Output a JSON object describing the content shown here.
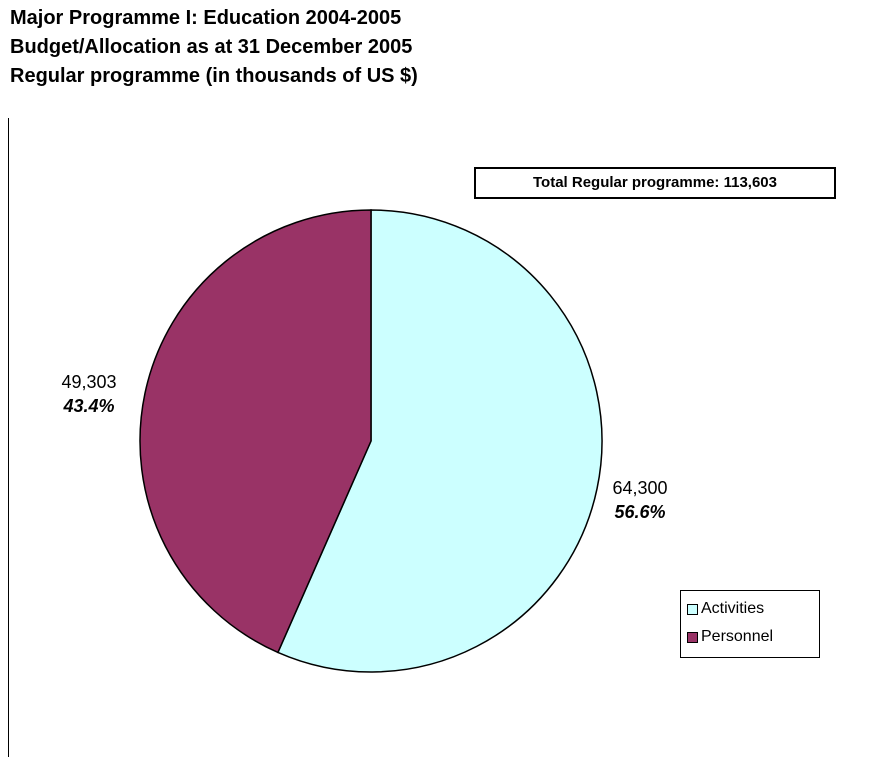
{
  "title": {
    "line1": "Major Programme I: Education 2004-2005",
    "line2": "Budget/Allocation as at 31 December 2005",
    "line3": "Regular programme (in thousands of US $)"
  },
  "total_label": "Total Regular programme: 113,603",
  "colors": {
    "activities": "#ccffff",
    "personnel": "#993366",
    "outline": "#000000"
  },
  "chart_data": {
    "type": "pie",
    "title": "Major Programme I: Education 2004-2005",
    "slices": [
      {
        "name": "Activities",
        "value": 64300,
        "value_label": "64,300",
        "percent": 56.6,
        "percent_label": "56.6%",
        "color": "#ccffff"
      },
      {
        "name": "Personnel",
        "value": 49303,
        "value_label": "49,303",
        "percent": 43.4,
        "percent_label": "43.4%",
        "color": "#993366"
      }
    ],
    "total": 113603,
    "legend_position": "bottom-right"
  },
  "legend": [
    {
      "label": "Activities",
      "color": "#ccffff"
    },
    {
      "label": "Personnel",
      "color": "#993366"
    }
  ]
}
